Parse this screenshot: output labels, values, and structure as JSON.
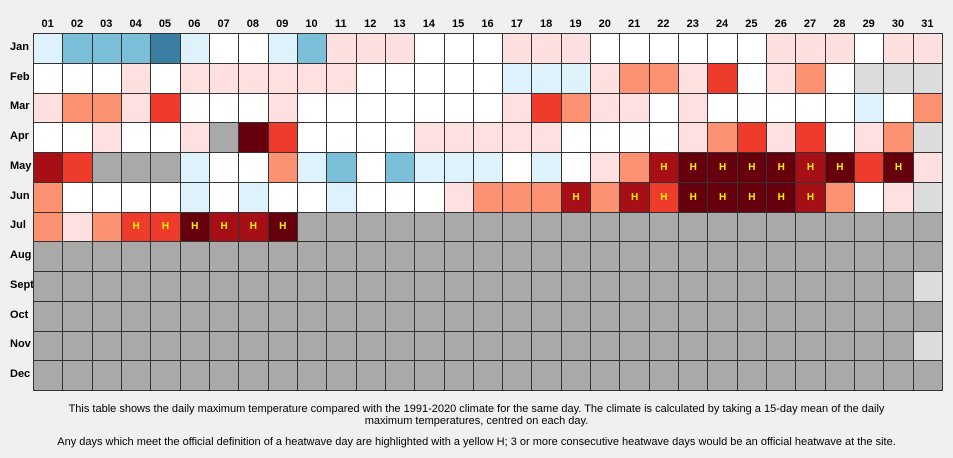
{
  "columns": [
    "01",
    "02",
    "03",
    "04",
    "05",
    "06",
    "07",
    "08",
    "09",
    "10",
    "11",
    "12",
    "13",
    "14",
    "15",
    "16",
    "17",
    "18",
    "19",
    "20",
    "21",
    "22",
    "23",
    "24",
    "25",
    "26",
    "27",
    "28",
    "29",
    "30",
    "31"
  ],
  "heatwave_text_color": "#ffee00",
  "rows": [
    {
      "label": "Jan",
      "cells": [
        "#ddf2fb",
        "#7bbfd9",
        "#7bbfd9",
        "#7bbfd9",
        "#3a7fa3",
        "#ddf2fb",
        "#ffffff",
        "#ffffff",
        "#ddf2fb",
        "#7bbfd9",
        "#fee0e0",
        "#fee0e0",
        "#fee0e0",
        "#ffffff",
        "#ffffff",
        "#ffffff",
        "#fee0e0",
        "#fee0e0",
        "#fee0e0",
        "#ffffff",
        "#ffffff",
        "#ffffff",
        "#ffffff",
        "#ffffff",
        "#ffffff",
        "#fee0e0",
        "#fee0e0",
        "#fee0e0",
        "#ffffff",
        "#fee0e0",
        "#fee0e0"
      ]
    },
    {
      "label": "Feb",
      "cells": [
        "#ffffff",
        "#ffffff",
        "#ffffff",
        "#fee0e0",
        "#ffffff",
        "#fee0e0",
        "#fee0e0",
        "#fee0e0",
        "#fee0e0",
        "#fee0e0",
        "#fee0e0",
        "#ffffff",
        "#ffffff",
        "#ffffff",
        "#ffffff",
        "#ffffff",
        "#ddf2fb",
        "#ddf2fb",
        "#ddf2fb",
        "#fee0e0",
        "#fc9272",
        "#fc9272",
        "#fee0e0",
        "#ef3b2c",
        "#ffffff",
        "#fee0e0",
        "#fc9272",
        "#ffffff",
        "#dcdcdc",
        "#dcdcdc",
        "#dcdcdc"
      ]
    },
    {
      "label": "Mar",
      "cells": [
        "#fee0e0",
        "#fc9272",
        "#fc9272",
        "#fee0e0",
        "#ef3b2c",
        "#ffffff",
        "#ffffff",
        "#ffffff",
        "#fee0e0",
        "#ffffff",
        "#ffffff",
        "#ffffff",
        "#ffffff",
        "#ffffff",
        "#ffffff",
        "#ffffff",
        "#fee0e0",
        "#ef3b2c",
        "#fc9272",
        "#fee0e0",
        "#fee0e0",
        "#ffffff",
        "#fee0e0",
        "#ffffff",
        "#ffffff",
        "#ffffff",
        "#ffffff",
        "#ffffff",
        "#ddf2fb",
        "#ffffff",
        "#fc9272"
      ]
    },
    {
      "label": "Apr",
      "cells": [
        "#ffffff",
        "#ffffff",
        "#fee0e0",
        "#ffffff",
        "#ffffff",
        "#fee0e0",
        "#a9a9a9",
        "#67000d",
        "#ef3b2c",
        "#ffffff",
        "#ffffff",
        "#ffffff",
        "#ffffff",
        "#fee0e0",
        "#fee0e0",
        "#fee0e0",
        "#fee0e0",
        "#fee0e0",
        "#ffffff",
        "#ffffff",
        "#ffffff",
        "#ffffff",
        "#fee0e0",
        "#fc9272",
        "#ef3b2c",
        "#fee0e0",
        "#ef3b2c",
        "#ffffff",
        "#fee0e0",
        "#fc9272",
        "#dcdcdc"
      ]
    },
    {
      "label": "May",
      "cells": [
        "#a50f15",
        "#ef3b2c",
        "#a9a9a9",
        "#a9a9a9",
        "#a9a9a9",
        "#ddf2fb",
        "#ffffff",
        "#ffffff",
        "#fc9272",
        "#ddf2fb",
        "#7bbfd9",
        "#ffffff",
        "#7bbfd9",
        "#ddf2fb",
        "#ddf2fb",
        "#ddf2fb",
        "#ffffff",
        "#ddf2fb",
        "#ffffff",
        "#fee0e0",
        "#fc9272",
        {
          "color": "#a50f15",
          "text": "H"
        },
        {
          "color": "#67000d",
          "text": "H"
        },
        {
          "color": "#67000d",
          "text": "H"
        },
        {
          "color": "#67000d",
          "text": "H"
        },
        {
          "color": "#67000d",
          "text": "H"
        },
        {
          "color": "#a50f15",
          "text": "H"
        },
        {
          "color": "#67000d",
          "text": "H"
        },
        "#ef3b2c",
        {
          "color": "#67000d",
          "text": "H"
        },
        "#fee0e0"
      ]
    },
    {
      "label": "Jun",
      "cells": [
        "#fc9272",
        "#ffffff",
        "#ffffff",
        "#ffffff",
        "#ffffff",
        "#ddf2fb",
        "#ffffff",
        "#ddf2fb",
        "#ffffff",
        "#ffffff",
        "#ddf2fb",
        "#ffffff",
        "#ffffff",
        "#ffffff",
        "#fee0e0",
        "#fc9272",
        "#fc9272",
        "#fc9272",
        {
          "color": "#a50f15",
          "text": "H"
        },
        "#fc9272",
        {
          "color": "#a50f15",
          "text": "H"
        },
        {
          "color": "#ef3b2c",
          "text": "H"
        },
        {
          "color": "#67000d",
          "text": "H"
        },
        {
          "color": "#67000d",
          "text": "H"
        },
        {
          "color": "#67000d",
          "text": "H"
        },
        {
          "color": "#67000d",
          "text": "H"
        },
        {
          "color": "#a50f15",
          "text": "H"
        },
        "#fc9272",
        "#ffffff",
        "#fee0e0",
        "#dcdcdc"
      ]
    },
    {
      "label": "Jul",
      "cells": [
        "#fc9272",
        "#fee0e0",
        "#fc9272",
        {
          "color": "#ef3b2c",
          "text": "H"
        },
        {
          "color": "#ef3b2c",
          "text": "H"
        },
        {
          "color": "#67000d",
          "text": "H"
        },
        {
          "color": "#a50f15",
          "text": "H"
        },
        {
          "color": "#a50f15",
          "text": "H"
        },
        {
          "color": "#67000d",
          "text": "H"
        },
        "#a9a9a9",
        "#a9a9a9",
        "#a9a9a9",
        "#a9a9a9",
        "#a9a9a9",
        "#a9a9a9",
        "#a9a9a9",
        "#a9a9a9",
        "#a9a9a9",
        "#a9a9a9",
        "#a9a9a9",
        "#a9a9a9",
        "#a9a9a9",
        "#a9a9a9",
        "#a9a9a9",
        "#a9a9a9",
        "#a9a9a9",
        "#a9a9a9",
        "#a9a9a9",
        "#a9a9a9",
        "#a9a9a9",
        "#a9a9a9"
      ]
    },
    {
      "label": "Aug",
      "cells": [
        "#a9a9a9",
        "#a9a9a9",
        "#a9a9a9",
        "#a9a9a9",
        "#a9a9a9",
        "#a9a9a9",
        "#a9a9a9",
        "#a9a9a9",
        "#a9a9a9",
        "#a9a9a9",
        "#a9a9a9",
        "#a9a9a9",
        "#a9a9a9",
        "#a9a9a9",
        "#a9a9a9",
        "#a9a9a9",
        "#a9a9a9",
        "#a9a9a9",
        "#a9a9a9",
        "#a9a9a9",
        "#a9a9a9",
        "#a9a9a9",
        "#a9a9a9",
        "#a9a9a9",
        "#a9a9a9",
        "#a9a9a9",
        "#a9a9a9",
        "#a9a9a9",
        "#a9a9a9",
        "#a9a9a9",
        "#a9a9a9"
      ]
    },
    {
      "label": "Sept",
      "cells": [
        "#a9a9a9",
        "#a9a9a9",
        "#a9a9a9",
        "#a9a9a9",
        "#a9a9a9",
        "#a9a9a9",
        "#a9a9a9",
        "#a9a9a9",
        "#a9a9a9",
        "#a9a9a9",
        "#a9a9a9",
        "#a9a9a9",
        "#a9a9a9",
        "#a9a9a9",
        "#a9a9a9",
        "#a9a9a9",
        "#a9a9a9",
        "#a9a9a9",
        "#a9a9a9",
        "#a9a9a9",
        "#a9a9a9",
        "#a9a9a9",
        "#a9a9a9",
        "#a9a9a9",
        "#a9a9a9",
        "#a9a9a9",
        "#a9a9a9",
        "#a9a9a9",
        "#a9a9a9",
        "#a9a9a9",
        "#dcdcdc"
      ]
    },
    {
      "label": "Oct",
      "cells": [
        "#a9a9a9",
        "#a9a9a9",
        "#a9a9a9",
        "#a9a9a9",
        "#a9a9a9",
        "#a9a9a9",
        "#a9a9a9",
        "#a9a9a9",
        "#a9a9a9",
        "#a9a9a9",
        "#a9a9a9",
        "#a9a9a9",
        "#a9a9a9",
        "#a9a9a9",
        "#a9a9a9",
        "#a9a9a9",
        "#a9a9a9",
        "#a9a9a9",
        "#a9a9a9",
        "#a9a9a9",
        "#a9a9a9",
        "#a9a9a9",
        "#a9a9a9",
        "#a9a9a9",
        "#a9a9a9",
        "#a9a9a9",
        "#a9a9a9",
        "#a9a9a9",
        "#a9a9a9",
        "#a9a9a9",
        "#a9a9a9"
      ]
    },
    {
      "label": "Nov",
      "cells": [
        "#a9a9a9",
        "#a9a9a9",
        "#a9a9a9",
        "#a9a9a9",
        "#a9a9a9",
        "#a9a9a9",
        "#a9a9a9",
        "#a9a9a9",
        "#a9a9a9",
        "#a9a9a9",
        "#a9a9a9",
        "#a9a9a9",
        "#a9a9a9",
        "#a9a9a9",
        "#a9a9a9",
        "#a9a9a9",
        "#a9a9a9",
        "#a9a9a9",
        "#a9a9a9",
        "#a9a9a9",
        "#a9a9a9",
        "#a9a9a9",
        "#a9a9a9",
        "#a9a9a9",
        "#a9a9a9",
        "#a9a9a9",
        "#a9a9a9",
        "#a9a9a9",
        "#a9a9a9",
        "#a9a9a9",
        "#dcdcdc"
      ]
    },
    {
      "label": "Dec",
      "cells": [
        "#a9a9a9",
        "#a9a9a9",
        "#a9a9a9",
        "#a9a9a9",
        "#a9a9a9",
        "#a9a9a9",
        "#a9a9a9",
        "#a9a9a9",
        "#a9a9a9",
        "#a9a9a9",
        "#a9a9a9",
        "#a9a9a9",
        "#a9a9a9",
        "#a9a9a9",
        "#a9a9a9",
        "#a9a9a9",
        "#a9a9a9",
        "#a9a9a9",
        "#a9a9a9",
        "#a9a9a9",
        "#a9a9a9",
        "#a9a9a9",
        "#a9a9a9",
        "#a9a9a9",
        "#a9a9a9",
        "#a9a9a9",
        "#a9a9a9",
        "#a9a9a9",
        "#a9a9a9",
        "#a9a9a9",
        "#a9a9a9"
      ]
    }
  ],
  "notes": [
    "This table shows the daily maximum temperature compared with the 1991-2020 climate for the same day. The climate is calculated by taking a 15-day mean of the daily maximum temperatures, centred on each day.",
    "Any days which meet the official definition of a heatwave day are highlighted with a yellow H; 3 or more consecutive heatwave days would be an official heatwave at the site."
  ]
}
